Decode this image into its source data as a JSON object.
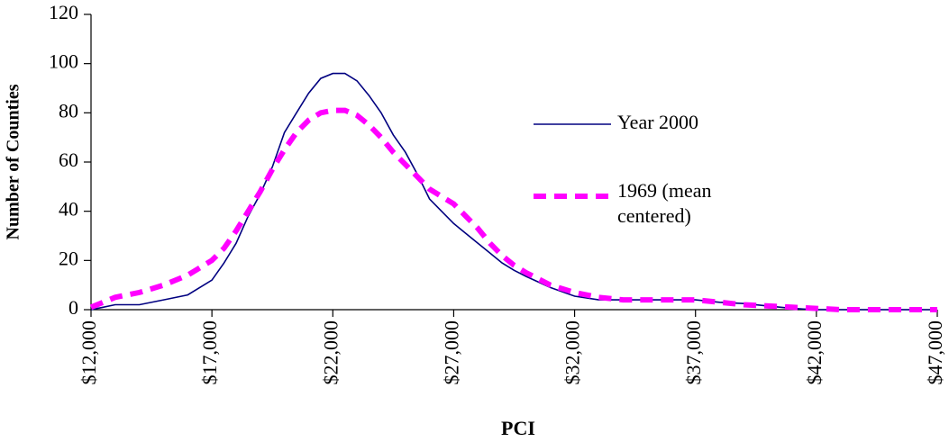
{
  "chart_data": {
    "type": "line",
    "xlabel": "PCI",
    "ylabel": "Number of Counties",
    "x": [
      12000,
      12500,
      13000,
      14000,
      15000,
      16000,
      17000,
      17500,
      18000,
      18500,
      19000,
      19500,
      20000,
      20500,
      21000,
      21500,
      22000,
      22500,
      23000,
      23500,
      24000,
      24500,
      25000,
      25500,
      26000,
      26500,
      27000,
      27500,
      28000,
      28500,
      29000,
      29500,
      30000,
      31000,
      32000,
      33000,
      34000,
      35000,
      36000,
      37000,
      38000,
      39000,
      40000,
      41000,
      42000,
      43000,
      44000,
      45000,
      46000,
      47000
    ],
    "series": [
      {
        "name": "Year 2000",
        "color": "#000080",
        "dashed": false,
        "values": [
          0,
          1,
          2,
          2,
          4,
          6,
          12,
          19,
          27,
          38,
          47,
          58,
          72,
          80,
          88,
          94,
          96,
          96,
          93,
          87,
          80,
          71,
          64,
          55,
          45,
          40,
          35,
          31,
          27,
          23,
          19,
          16,
          13.5,
          9,
          5.5,
          4,
          4,
          4,
          4,
          4,
          3,
          2.5,
          1.5,
          0.5,
          0,
          0,
          0,
          0,
          0,
          0
        ]
      },
      {
        "name": "1969 (mean centered)",
        "color": "#ff00ff",
        "dashed": true,
        "values": [
          1,
          3,
          5,
          7,
          10,
          14,
          20,
          25,
          32,
          40,
          48,
          57,
          65,
          72,
          77,
          80,
          81,
          81,
          79,
          75,
          70,
          64,
          59,
          54,
          49,
          46,
          43,
          38,
          33,
          27,
          22,
          18,
          15,
          10,
          7,
          5,
          4,
          4,
          4,
          4,
          3,
          2,
          1.5,
          1,
          0.5,
          0,
          0,
          0,
          0,
          0
        ]
      }
    ],
    "xlim": [
      12000,
      47000
    ],
    "xticks": [
      {
        "value": 12000,
        "label": "$12,000"
      },
      {
        "value": 17000,
        "label": "$17,000"
      },
      {
        "value": 22000,
        "label": "$22,000"
      },
      {
        "value": 27000,
        "label": "$27,000"
      },
      {
        "value": 32000,
        "label": "$32,000"
      },
      {
        "value": 37000,
        "label": "$37,000"
      },
      {
        "value": 42000,
        "label": "$42,000"
      },
      {
        "value": 47000,
        "label": "$47,000"
      }
    ],
    "ylim": [
      0,
      120
    ],
    "yticks": [
      0,
      20,
      40,
      60,
      80,
      100,
      120
    ],
    "grid": false
  }
}
